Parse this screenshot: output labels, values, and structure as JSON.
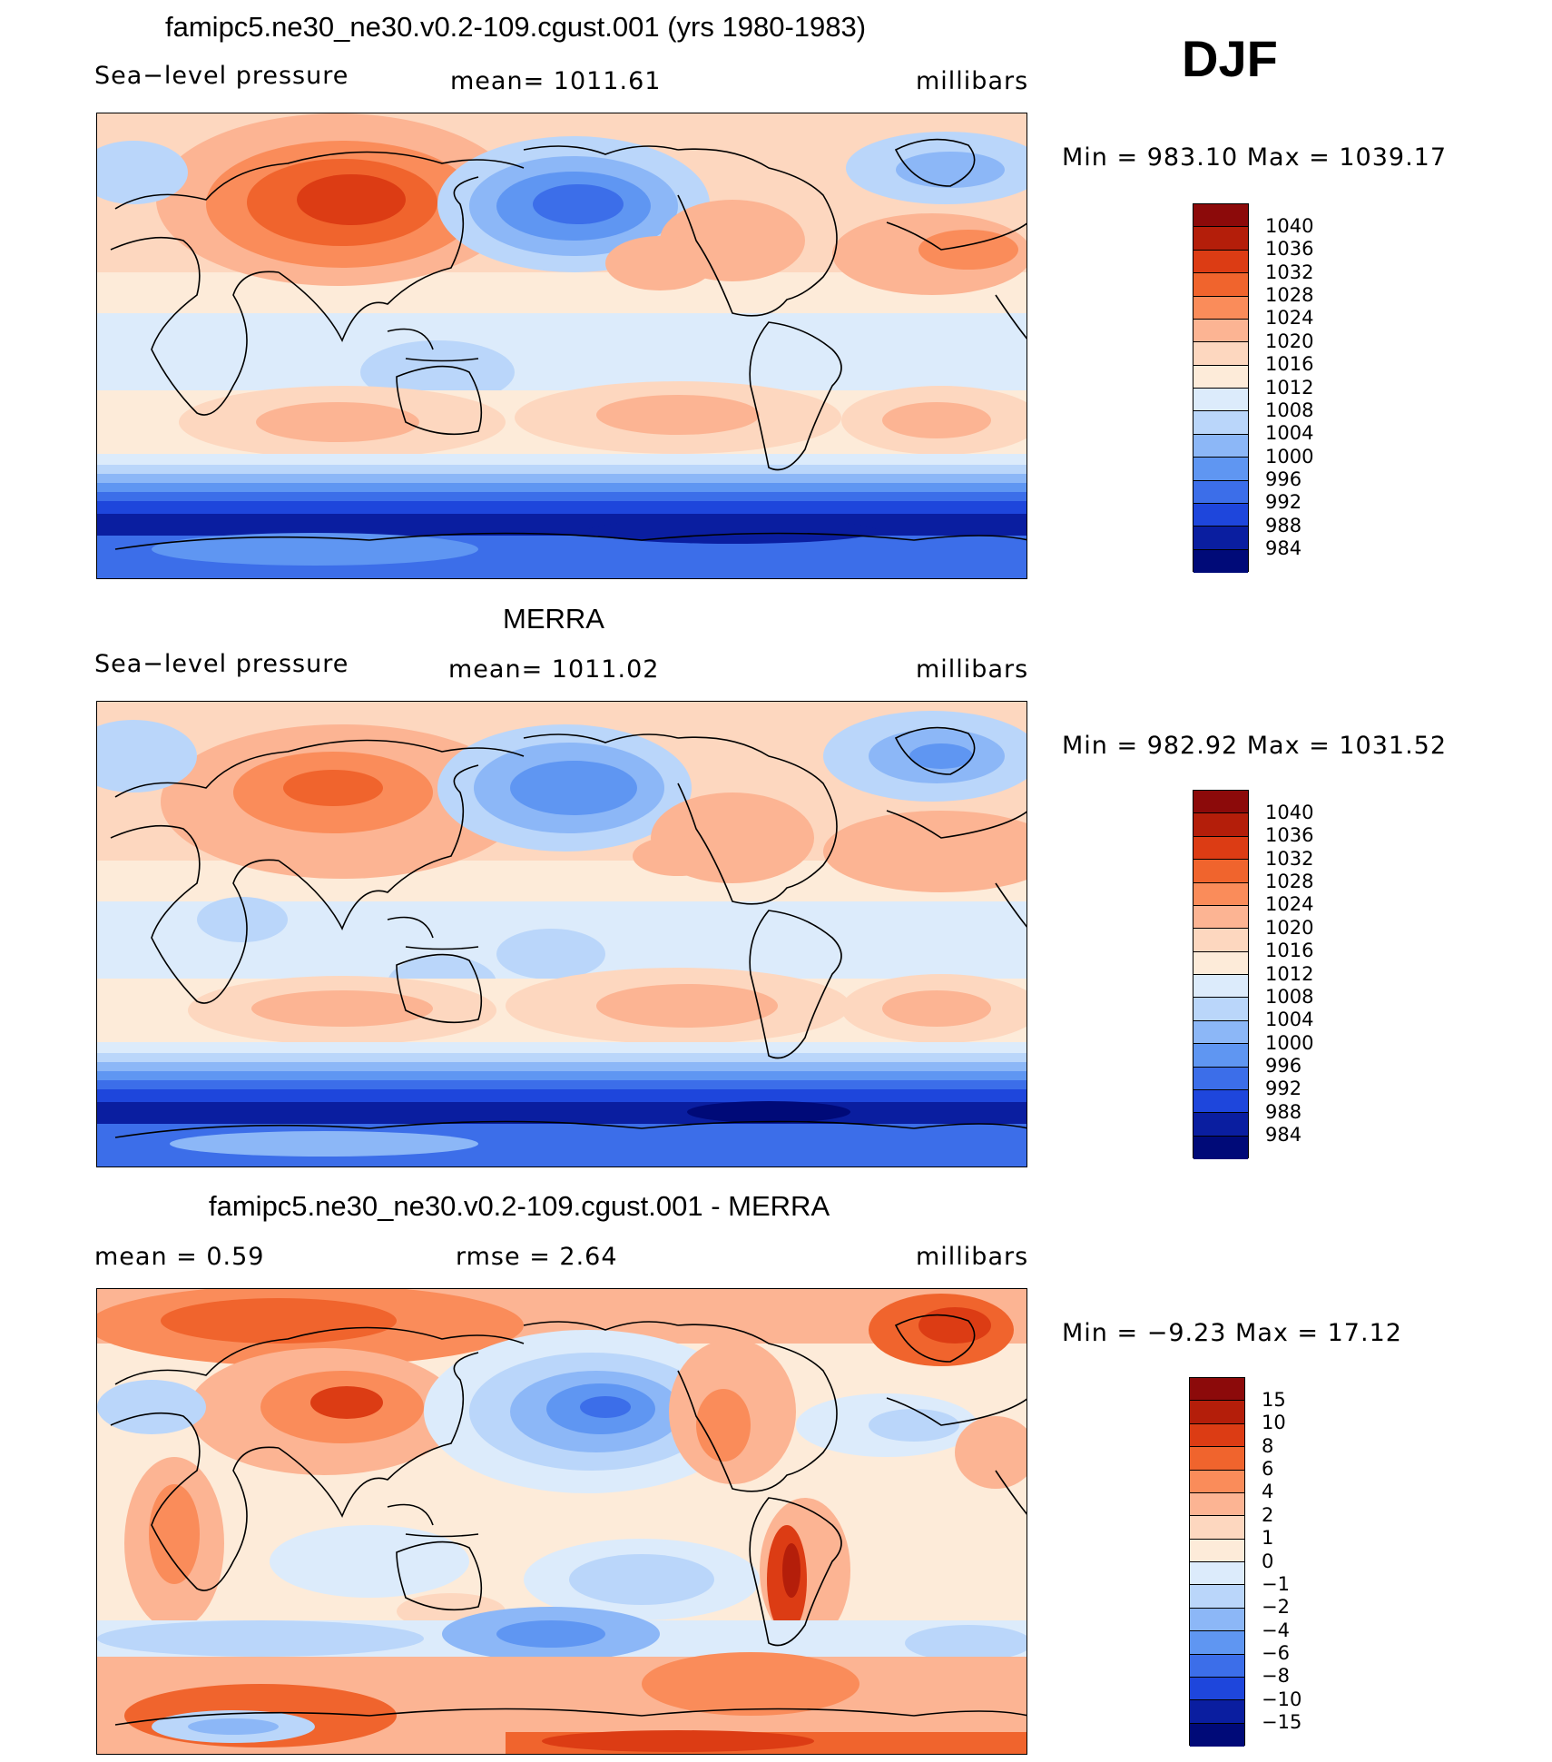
{
  "season": "DJF",
  "panels": [
    {
      "title": "famipc5.ne30_ne30.v0.2-109.cgust.001 (yrs 1980-1983)",
      "left_label": "Sea−level pressure",
      "center_label": "mean=  1011.61",
      "right_label": "millibars",
      "minmax": "Min  =  983.10  Max  =  1039.17",
      "legend": [
        "1040",
        "1036",
        "1032",
        "1028",
        "1024",
        "1020",
        "1016",
        "1012",
        "1008",
        "1004",
        "1000",
        "996",
        "992",
        "988",
        "984"
      ]
    },
    {
      "title": "MERRA",
      "left_label": "Sea−level pressure",
      "center_label": "mean=  1011.02",
      "right_label": "millibars",
      "minmax": "Min  =  982.92  Max  =  1031.52",
      "legend": [
        "1040",
        "1036",
        "1032",
        "1028",
        "1024",
        "1020",
        "1016",
        "1012",
        "1008",
        "1004",
        "1000",
        "996",
        "992",
        "988",
        "984"
      ]
    },
    {
      "title": "famipc5.ne30_ne30.v0.2-109.cgust.001 - MERRA",
      "left_label": "mean  =      0.59",
      "center_label": "rmse  =      2.64",
      "right_label": "millibars",
      "minmax": "Min  =    −9.23  Max  =    17.12",
      "legend": [
        "15",
        "10",
        "8",
        "6",
        "4",
        "2",
        "1",
        "0",
        "−1",
        "−2",
        "−4",
        "−6",
        "−8",
        "−10",
        "−15"
      ]
    }
  ],
  "colors": {
    "mean_scale": [
      "#8c0a0a",
      "#b41e0a",
      "#dc3c14",
      "#f0642d",
      "#fa8c5a",
      "#fcb493",
      "#fdd7bf",
      "#fdebd9",
      "#dcebfb",
      "#bad6fa",
      "#8cb7f7",
      "#5f96f2",
      "#3c6ee9",
      "#1e46dc",
      "#0a1ea0",
      "#000a78"
    ],
    "diff_scale": [
      "#8c0a0a",
      "#b41e0a",
      "#dc3c14",
      "#f0642d",
      "#fa8c5a",
      "#fcb493",
      "#fdd7bf",
      "#fdebd9",
      "#dcebfb",
      "#bad6fa",
      "#8cb7f7",
      "#5f96f2",
      "#3c6ee9",
      "#1e46dc",
      "#0a1ea0",
      "#000a78"
    ],
    "land_outline": "#000000"
  }
}
